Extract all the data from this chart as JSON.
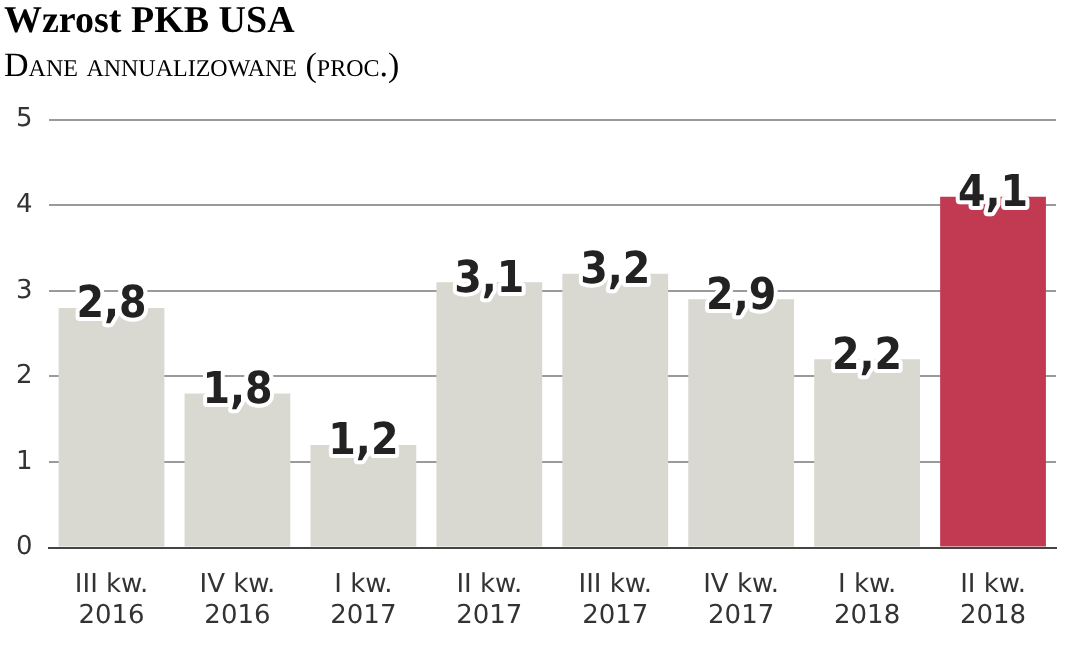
{
  "chart_data": {
    "type": "bar",
    "title": "Wzrost PKB USA",
    "subtitle": "Dane annualizowane (proc.)",
    "categories": [
      "III kw. 2016",
      "IV kw. 2016",
      "I kw. 2017",
      "II kw. 2017",
      "III kw. 2017",
      "IV kw. 2017",
      "I kw. 2018",
      "II kw. 2018"
    ],
    "values": [
      2.8,
      1.8,
      1.2,
      3.1,
      3.2,
      2.9,
      2.2,
      4.1
    ],
    "colors": [
      "#d9d9d1",
      "#d9d9d1",
      "#d9d9d1",
      "#d9d9d1",
      "#d9d9d1",
      "#d9d9d1",
      "#d9d9d1",
      "#c13a52"
    ],
    "value_labels": [
      "2,8",
      "1,8",
      "1,2",
      "3,1",
      "3,2",
      "2,9",
      "2,2",
      "4,1"
    ],
    "ylim": [
      0,
      5
    ],
    "yticks": [
      0,
      1,
      2,
      3,
      4,
      5
    ],
    "grid": "y"
  }
}
